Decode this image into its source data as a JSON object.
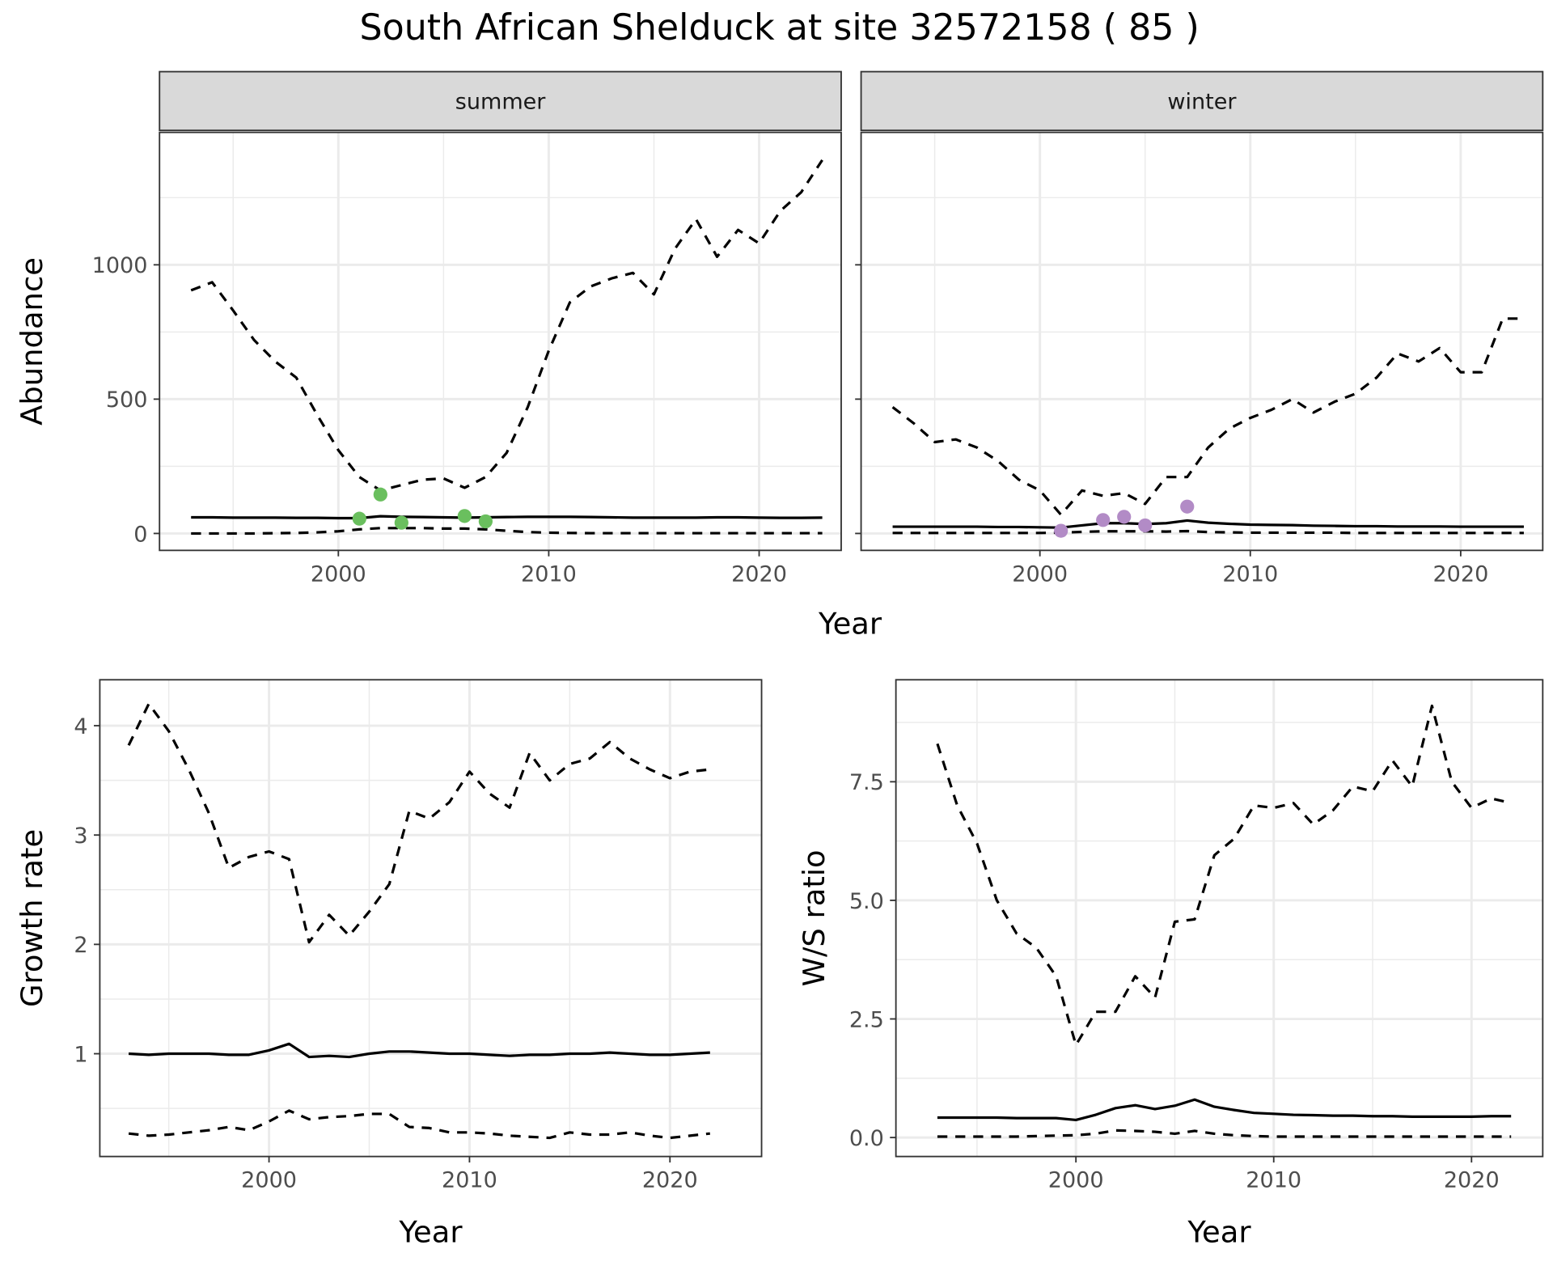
{
  "title": "South African Shelduck at site 32572158 ( 85 )",
  "colors": {
    "summer_points": "#6abf5e",
    "winter_points": "#b28bc6",
    "line": "#000000",
    "grid": "#ebebeb",
    "strip_fill": "#d9d9d9"
  },
  "chart_data": [
    {
      "id": "summer",
      "type": "line",
      "strip": "summer",
      "xlabel": "",
      "ylabel": "Abundance",
      "xlim": [
        1991.5,
        2023.9
      ],
      "ylim": [
        -63,
        1493
      ],
      "xticks": [
        2000,
        2010,
        2020
      ],
      "xtick_labels": [
        "2000",
        "2010",
        "2020"
      ],
      "show_xticks": true,
      "yticks": [
        0,
        500,
        1000
      ],
      "ytick_labels": [
        "0",
        "500",
        "1000"
      ],
      "show_yticks": true,
      "xminor": [
        1995,
        2005,
        2015
      ],
      "yminor": [
        250,
        750,
        1250
      ],
      "x": [
        1993,
        1994,
        1995,
        1996,
        1997,
        1998,
        1999,
        2000,
        2001,
        2002,
        2003,
        2004,
        2005,
        2006,
        2007,
        2008,
        2009,
        2010,
        2011,
        2012,
        2013,
        2014,
        2015,
        2016,
        2017,
        2018,
        2019,
        2020,
        2021,
        2022,
        2023
      ],
      "series": [
        {
          "name": "upper",
          "style": "dashed",
          "values": [
            905,
            935,
            830,
            720,
            640,
            580,
            440,
            310,
            210,
            160,
            180,
            200,
            205,
            170,
            210,
            300,
            470,
            680,
            860,
            920,
            950,
            970,
            890,
            1060,
            1170,
            1030,
            1130,
            1080,
            1200,
            1270,
            1390
          ]
        },
        {
          "name": "mean",
          "style": "solid",
          "values": [
            60,
            60,
            59,
            59,
            59,
            58,
            58,
            57,
            57,
            64,
            62,
            61,
            60,
            59,
            60,
            61,
            62,
            62,
            62,
            61,
            60,
            59,
            59,
            59,
            59,
            60,
            60,
            59,
            58,
            58,
            59
          ]
        },
        {
          "name": "lower",
          "style": "dashed",
          "values": [
            0,
            0,
            0,
            0,
            1,
            2,
            4,
            8,
            15,
            20,
            20,
            20,
            18,
            18,
            15,
            10,
            5,
            3,
            2,
            1,
            1,
            1,
            1,
            1,
            1,
            1,
            1,
            1,
            1,
            1,
            1
          ]
        }
      ],
      "points": {
        "x": [
          2001,
          2002,
          2003,
          2006,
          2007
        ],
        "y": [
          55,
          145,
          40,
          65,
          45
        ],
        "color": "#6abf5e"
      }
    },
    {
      "id": "winter",
      "type": "line",
      "strip": "winter",
      "xlabel": "",
      "ylabel": "",
      "xlim": [
        1991.5,
        2023.9
      ],
      "ylim": [
        -63,
        1493
      ],
      "xticks": [
        2000,
        2010,
        2020
      ],
      "xtick_labels": [
        "2000",
        "2010",
        "2020"
      ],
      "show_xticks": true,
      "yticks": [
        0,
        500,
        1000
      ],
      "ytick_labels": [],
      "show_yticks": false,
      "xminor": [
        1995,
        2005,
        2015
      ],
      "yminor": [
        250,
        750,
        1250
      ],
      "x": [
        1993,
        1994,
        1995,
        1996,
        1997,
        1998,
        1999,
        2000,
        2001,
        2002,
        2003,
        2004,
        2005,
        2006,
        2007,
        2008,
        2009,
        2010,
        2011,
        2012,
        2013,
        2014,
        2015,
        2016,
        2017,
        2018,
        2019,
        2020,
        2021,
        2022,
        2023
      ],
      "series": [
        {
          "name": "upper",
          "style": "dashed",
          "values": [
            470,
            410,
            340,
            350,
            320,
            270,
            200,
            160,
            70,
            160,
            140,
            150,
            110,
            210,
            210,
            320,
            390,
            430,
            460,
            500,
            450,
            490,
            520,
            580,
            670,
            640,
            690,
            600,
            600,
            800,
            800
          ]
        },
        {
          "name": "mean",
          "style": "solid",
          "values": [
            25,
            25,
            25,
            25,
            25,
            24,
            24,
            23,
            22,
            30,
            38,
            38,
            35,
            38,
            48,
            40,
            36,
            33,
            32,
            31,
            29,
            28,
            27,
            27,
            26,
            26,
            26,
            25,
            25,
            25,
            25
          ]
        },
        {
          "name": "lower",
          "style": "dashed",
          "values": [
            2,
            2,
            2,
            2,
            2,
            2,
            2,
            2,
            3,
            6,
            8,
            8,
            8,
            7,
            9,
            5,
            4,
            3,
            3,
            3,
            3,
            3,
            2,
            2,
            2,
            2,
            2,
            2,
            2,
            2,
            2
          ]
        }
      ],
      "points": {
        "x": [
          2001,
          2003,
          2004,
          2005,
          2007
        ],
        "y": [
          10,
          50,
          62,
          30,
          100
        ],
        "color": "#b28bc6"
      }
    },
    {
      "id": "growth",
      "type": "line",
      "strip": "",
      "xlabel": "Year",
      "ylabel": "Growth rate",
      "xlim": [
        1991.56,
        2024.57
      ],
      "ylim": [
        0.06,
        4.42
      ],
      "xticks": [
        2000,
        2010,
        2020
      ],
      "xtick_labels": [
        "2000",
        "2010",
        "2020"
      ],
      "show_xticks": true,
      "yticks": [
        1,
        2,
        3,
        4
      ],
      "ytick_labels": [
        "1",
        "2",
        "3",
        "4"
      ],
      "show_yticks": true,
      "xminor": [
        1995,
        2005,
        2015
      ],
      "yminor": [
        0.5,
        1.5,
        2.5,
        3.5
      ],
      "x": [
        1993,
        1994,
        1995,
        1996,
        1997,
        1998,
        1999,
        2000,
        2001,
        2002,
        2003,
        2004,
        2005,
        2006,
        2007,
        2008,
        2009,
        2010,
        2011,
        2012,
        2013,
        2014,
        2015,
        2016,
        2017,
        2018,
        2019,
        2020,
        2021,
        2022
      ],
      "series": [
        {
          "name": "upper",
          "style": "dashed",
          "values": [
            3.82,
            4.2,
            3.95,
            3.6,
            3.2,
            2.7,
            2.8,
            2.85,
            2.78,
            2.02,
            2.27,
            2.08,
            2.3,
            2.55,
            3.22,
            3.15,
            3.3,
            3.58,
            3.38,
            3.25,
            3.75,
            3.5,
            3.65,
            3.7,
            3.85,
            3.7,
            3.6,
            3.52,
            3.58,
            3.6
          ]
        },
        {
          "name": "mean",
          "style": "solid",
          "values": [
            1.0,
            0.99,
            1.0,
            1.0,
            1.0,
            0.99,
            0.99,
            1.03,
            1.09,
            0.97,
            0.98,
            0.97,
            1.0,
            1.02,
            1.02,
            1.01,
            1.0,
            1.0,
            0.99,
            0.98,
            0.99,
            0.99,
            1.0,
            1.0,
            1.01,
            1.0,
            0.99,
            0.99,
            1.0,
            1.01
          ]
        },
        {
          "name": "lower",
          "style": "dashed",
          "values": [
            0.27,
            0.25,
            0.26,
            0.28,
            0.3,
            0.33,
            0.3,
            0.38,
            0.48,
            0.4,
            0.42,
            0.43,
            0.45,
            0.45,
            0.33,
            0.32,
            0.28,
            0.28,
            0.27,
            0.25,
            0.24,
            0.23,
            0.28,
            0.26,
            0.26,
            0.28,
            0.25,
            0.23,
            0.25,
            0.27
          ]
        }
      ]
    },
    {
      "id": "ws_ratio",
      "type": "line",
      "strip": "",
      "xlabel": "Year",
      "ylabel": "W/S ratio",
      "xlim": [
        1990.9,
        2023.6
      ],
      "ylim": [
        -0.4,
        9.65
      ],
      "xticks": [
        2000,
        2010,
        2020
      ],
      "xtick_labels": [
        "2000",
        "2010",
        "2020"
      ],
      "show_xticks": true,
      "yticks": [
        0,
        2.5,
        5,
        7.5
      ],
      "ytick_labels": [
        "0.0",
        "2.5",
        "5.0",
        "7.5"
      ],
      "show_yticks": true,
      "xminor": [
        1995,
        2005,
        2015
      ],
      "yminor": [
        1.25,
        3.75,
        6.25,
        8.75
      ],
      "x": [
        1993,
        1994,
        1995,
        1996,
        1997,
        1998,
        1999,
        2000,
        2001,
        2002,
        2003,
        2004,
        2005,
        2006,
        2007,
        2008,
        2009,
        2010,
        2011,
        2012,
        2013,
        2014,
        2015,
        2016,
        2017,
        2018,
        2019,
        2020,
        2021,
        2022
      ],
      "series": [
        {
          "name": "upper",
          "style": "dashed",
          "values": [
            8.3,
            7.0,
            6.2,
            5.0,
            4.3,
            4.0,
            3.4,
            1.95,
            2.65,
            2.65,
            3.4,
            2.95,
            4.55,
            4.6,
            5.95,
            6.3,
            7.0,
            6.95,
            7.05,
            6.6,
            6.9,
            7.4,
            7.3,
            7.95,
            7.4,
            9.1,
            7.5,
            6.95,
            7.15,
            7.05
          ]
        },
        {
          "name": "mean",
          "style": "solid",
          "values": [
            0.42,
            0.42,
            0.42,
            0.42,
            0.41,
            0.41,
            0.41,
            0.37,
            0.48,
            0.62,
            0.68,
            0.6,
            0.67,
            0.8,
            0.65,
            0.58,
            0.52,
            0.5,
            0.48,
            0.47,
            0.46,
            0.46,
            0.45,
            0.45,
            0.44,
            0.44,
            0.44,
            0.44,
            0.45,
            0.45
          ]
        },
        {
          "name": "lower",
          "style": "dashed",
          "values": [
            0.02,
            0.02,
            0.02,
            0.02,
            0.02,
            0.03,
            0.04,
            0.05,
            0.08,
            0.15,
            0.14,
            0.12,
            0.08,
            0.14,
            0.08,
            0.05,
            0.03,
            0.02,
            0.02,
            0.02,
            0.02,
            0.02,
            0.02,
            0.02,
            0.02,
            0.02,
            0.02,
            0.02,
            0.02,
            0.02
          ]
        }
      ]
    }
  ],
  "shared_xlabel_top": "Year"
}
